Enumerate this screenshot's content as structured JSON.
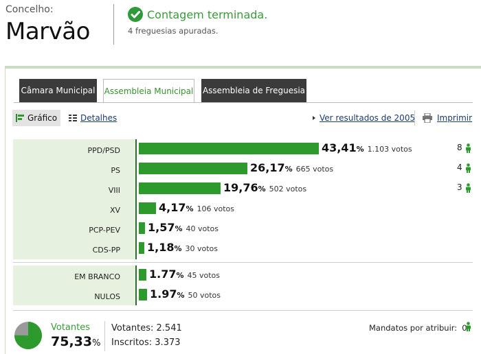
{
  "header": {
    "label": "Concelho:",
    "name": "Marvão",
    "status_title": "Contagem terminada.",
    "status_sub": "4 freguesias apuradas."
  },
  "tabs": [
    {
      "label": "Câmara Municipal",
      "active": false
    },
    {
      "label": "Assembleia Municipal",
      "active": true
    },
    {
      "label": "Assembleia de Freguesia",
      "active": false
    }
  ],
  "toolbar": {
    "grafico": "Gráfico",
    "detalhes": "Detalhes",
    "ver_resultados": "Ver resultados de 2005",
    "imprimir": "Imprimir"
  },
  "chart_data": {
    "type": "bar",
    "categories": [
      "PPD/PSD",
      "PS",
      "VIII",
      "XV",
      "PCP-PEV",
      "CDS-PP",
      "EM BRANCO",
      "NULOS"
    ],
    "series": [
      {
        "values": [
          43.41,
          26.17,
          19.76,
          4.17,
          1.57,
          1.18,
          1.77,
          1.97
        ]
      }
    ],
    "pct_labels": [
      "43,41",
      "26,17",
      "19,76",
      "4,17",
      "1,57",
      "1,18",
      "1.77",
      "1.97"
    ],
    "votes_labels": [
      "1.103 votos",
      "665 votos",
      "502 votos",
      "106 votos",
      "40 votos",
      "30 votos",
      "45 votos",
      "50 votos"
    ],
    "seats": [
      "8",
      "4",
      "3",
      "",
      "",
      "",
      "",
      ""
    ],
    "bar_color": "#2e9a2e"
  },
  "footer": {
    "votantes_label": "Votantes",
    "votantes_pct": "75,33",
    "votantes_pct_fraction": 0.7533,
    "votantes_count": "Votantes: 2.541",
    "inscritos_count": "Inscritos: 3.373",
    "mandatos_label": "Mandatos por atribuir:",
    "mandatos_value": "0"
  },
  "colors": {
    "accent_green": "#2e9a2e",
    "name_panel": "#e6f2df",
    "tab_dark": "#3b3b3b"
  }
}
